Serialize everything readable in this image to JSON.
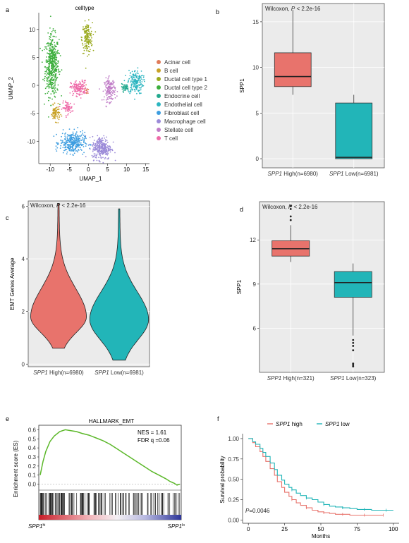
{
  "panel_letters": {
    "a": "a",
    "b": "b",
    "c": "c",
    "d": "d",
    "e": "e",
    "f": "f"
  },
  "colors": {
    "high": "#e8736c",
    "low": "#22b5b8",
    "acinar": "#e07b5a",
    "bcell": "#c9a227",
    "ductal1": "#9aaa1f",
    "ductal2": "#3cae3c",
    "endocrine": "#23a98e",
    "endothelial": "#2bb5c0",
    "fibroblast": "#3d9de0",
    "macrophage": "#9b8ad8",
    "stellate": "#c07cc7",
    "tcell": "#ee6aa8",
    "gsea_line": "#5cb82a",
    "panel_bg": "#ebebeb"
  },
  "chart_data": [
    {
      "panel": "a",
      "type": "scatter",
      "title": "celltype",
      "xlabel": "UMAP_1",
      "ylabel": "UMAP_2",
      "xlim": [
        -13,
        16
      ],
      "ylim": [
        -14,
        13
      ],
      "xticks": [
        -10,
        -5,
        0,
        5,
        10,
        15
      ],
      "yticks": [
        -10,
        -5,
        0,
        5,
        10
      ],
      "legend_position": "right",
      "series": [
        {
          "name": "Acinar cell",
          "color_key": "acinar"
        },
        {
          "name": "B cell",
          "color_key": "bcell"
        },
        {
          "name": "Ductal cell type 1",
          "color_key": "ductal1"
        },
        {
          "name": "Ductal cell type 2",
          "color_key": "ductal2"
        },
        {
          "name": "Endocrine cell",
          "color_key": "endocrine"
        },
        {
          "name": "Endothelial cell",
          "color_key": "endothelial"
        },
        {
          "name": "Fibroblast cell",
          "color_key": "fibroblast"
        },
        {
          "name": "Macrophage cell",
          "color_key": "macrophage"
        },
        {
          "name": "Stellate cell",
          "color_key": "stellate"
        },
        {
          "name": "T cell",
          "color_key": "tcell"
        }
      ],
      "clusters": [
        {
          "series": "Ductal cell type 2",
          "cx": -9.5,
          "cy": 3.5,
          "rx": 2,
          "ry": 6,
          "n": 480
        },
        {
          "series": "Ductal cell type 1",
          "cx": -0.3,
          "cy": 8.5,
          "rx": 1.5,
          "ry": 3,
          "n": 160
        },
        {
          "series": "Endothelial cell",
          "cx": 12.3,
          "cy": 0.6,
          "rx": 2.2,
          "ry": 2.4,
          "n": 180
        },
        {
          "series": "T cell",
          "cx": -2.5,
          "cy": -0.5,
          "rx": 2.3,
          "ry": 1.5,
          "n": 150
        },
        {
          "series": "T cell",
          "cx": -5.5,
          "cy": -4.0,
          "rx": 1.5,
          "ry": 1.2,
          "n": 70
        },
        {
          "series": "Stellate cell",
          "cx": 5.6,
          "cy": -0.8,
          "rx": 1.6,
          "ry": 2.3,
          "n": 150
        },
        {
          "series": "B cell",
          "cx": -8.6,
          "cy": -5.0,
          "rx": 1.3,
          "ry": 1.5,
          "n": 80
        },
        {
          "series": "Fibroblast cell",
          "cx": -4.2,
          "cy": -10.3,
          "rx": 3.6,
          "ry": 2.1,
          "n": 320
        },
        {
          "series": "Macrophage cell",
          "cx": 3.5,
          "cy": -11.2,
          "rx": 2.8,
          "ry": 2.3,
          "n": 280
        },
        {
          "series": "Acinar cell",
          "cx": -0.5,
          "cy": -0.8,
          "rx": 0.5,
          "ry": 0.8,
          "n": 12
        },
        {
          "series": "Endocrine cell",
          "cx": 9.5,
          "cy": -0.4,
          "rx": 1.2,
          "ry": 0.7,
          "n": 40
        }
      ]
    },
    {
      "panel": "b",
      "type": "box",
      "annotation": "Wilcoxon, P < 2.2e-16",
      "ylabel": "SPP1",
      "ylim": [
        -1,
        17
      ],
      "yticks": [
        0,
        5,
        10,
        15
      ],
      "categories": [
        "SPP1 High(n=6980)",
        "SPP1 Low(n=6981)"
      ],
      "gene_prefix": "SPP1",
      "tick_suffixes": [
        " High(n=6980)",
        " Low(n=6981)"
      ],
      "boxes": [
        {
          "min": 7.0,
          "q1": 7.9,
          "median": 9.0,
          "q3": 11.6,
          "max": 16.3,
          "outliers": [],
          "color_key": "high"
        },
        {
          "min": 0.0,
          "q1": 0.0,
          "median": 0.15,
          "q3": 6.1,
          "max": 7.0,
          "outliers": [],
          "color_key": "low"
        }
      ]
    },
    {
      "panel": "c",
      "type": "violin",
      "annotation": "Wilcoxon, P < 2.2e-16",
      "ylabel": "EMT Genes Average",
      "ylim": [
        -0.1,
        6.2
      ],
      "yticks": [
        0,
        2,
        4,
        6
      ],
      "categories": [
        "SPP1 High(n=6980)",
        "SPP1 Low(n=6981)"
      ],
      "gene_prefix": "SPP1",
      "tick_suffixes": [
        " High(n=6980)",
        " Low(n=6981)"
      ],
      "violins": [
        {
          "min": 0.6,
          "max": 6.1,
          "mode": 1.8,
          "max_halfwidth": 0.92,
          "color_key": "high"
        },
        {
          "min": 0.15,
          "max": 5.9,
          "mode": 1.7,
          "max_halfwidth": 0.97,
          "color_key": "low"
        }
      ]
    },
    {
      "panel": "d",
      "type": "box",
      "annotation": "Wilcoxon, P < 2.2e-16",
      "ylabel": "SPP1",
      "ylim": [
        3,
        14.6
      ],
      "yticks": [
        6,
        9,
        12
      ],
      "categories": [
        "SPP1 High(n=321)",
        "SPP1 Low(n=323)"
      ],
      "gene_prefix": "SPP1",
      "tick_suffixes": [
        " High(n=321)",
        " Low(n=323)"
      ],
      "boxes": [
        {
          "min": 10.5,
          "q1": 10.9,
          "median": 11.4,
          "q3": 11.95,
          "max": 13.0,
          "outliers": [
            13.35,
            13.6,
            14.1,
            14.3
          ],
          "color_key": "high"
        },
        {
          "min": 5.5,
          "q1": 8.1,
          "median": 9.1,
          "q3": 9.85,
          "max": 10.4,
          "outliers": [
            5.2,
            5.0,
            4.8,
            4.5,
            3.6,
            3.5,
            3.4
          ],
          "color_key": "low"
        }
      ]
    },
    {
      "panel": "e",
      "type": "line",
      "title": "HALLMARK_EMT",
      "ylabel": "Enrichment score (ES)",
      "ylim": [
        -0.05,
        0.65
      ],
      "yticks": [
        0.0,
        0.1,
        0.2,
        0.3,
        0.4,
        0.5,
        0.6
      ],
      "stats": [
        "NES = 1.61",
        "FDR q =0.06"
      ],
      "left_label": "SPP1",
      "left_sup": "hi",
      "right_label": "SPP1",
      "right_sup": "lo",
      "x": [
        0,
        0.02,
        0.04,
        0.07,
        0.1,
        0.14,
        0.18,
        0.22,
        0.26,
        0.3,
        0.35,
        0.4,
        0.45,
        0.5,
        0.55,
        0.6,
        0.65,
        0.7,
        0.75,
        0.8,
        0.85,
        0.9,
        0.93,
        0.96,
        0.98,
        1.0
      ],
      "y": [
        0.1,
        0.25,
        0.36,
        0.47,
        0.53,
        0.58,
        0.6,
        0.59,
        0.58,
        0.56,
        0.54,
        0.51,
        0.48,
        0.44,
        0.39,
        0.34,
        0.29,
        0.24,
        0.19,
        0.14,
        0.1,
        0.06,
        0.03,
        0.01,
        -0.01,
        0.0
      ]
    },
    {
      "panel": "f",
      "type": "line",
      "xlabel": "Months",
      "ylabel": "Survival probability",
      "xlim": [
        -4,
        104
      ],
      "ylim": [
        -0.04,
        1.06
      ],
      "xticks": [
        0,
        25,
        50,
        75,
        100
      ],
      "yticks": [
        0.0,
        0.25,
        0.5,
        0.75,
        1.0
      ],
      "annotation": "P=0.0046",
      "series": [
        {
          "name": "SPP1 high",
          "gene": "SPP1",
          "suffix": " high",
          "color_key": "high",
          "x": [
            0,
            3,
            5,
            8,
            10,
            12,
            15,
            18,
            20,
            23,
            25,
            28,
            30,
            33,
            36,
            40,
            44,
            48,
            52,
            56,
            60,
            65,
            70,
            75,
            80,
            85,
            90,
            93
          ],
          "y": [
            1.0,
            0.95,
            0.9,
            0.84,
            0.78,
            0.72,
            0.63,
            0.55,
            0.47,
            0.4,
            0.34,
            0.29,
            0.25,
            0.21,
            0.18,
            0.15,
            0.12,
            0.1,
            0.09,
            0.08,
            0.07,
            0.07,
            0.06,
            0.06,
            0.06,
            0.06,
            0.06,
            0.06
          ]
        },
        {
          "name": "SPP1 low",
          "gene": "SPP1",
          "suffix": " low",
          "color_key": "low",
          "x": [
            0,
            3,
            5,
            8,
            10,
            12,
            15,
            18,
            20,
            23,
            25,
            28,
            30,
            33,
            36,
            40,
            44,
            48,
            52,
            56,
            60,
            65,
            70,
            75,
            80,
            85,
            90,
            95,
            100
          ],
          "y": [
            1.0,
            0.96,
            0.93,
            0.88,
            0.83,
            0.78,
            0.7,
            0.62,
            0.55,
            0.49,
            0.44,
            0.4,
            0.37,
            0.33,
            0.3,
            0.27,
            0.25,
            0.22,
            0.19,
            0.17,
            0.16,
            0.15,
            0.14,
            0.13,
            0.13,
            0.12,
            0.12,
            0.12,
            0.12
          ]
        }
      ]
    }
  ]
}
